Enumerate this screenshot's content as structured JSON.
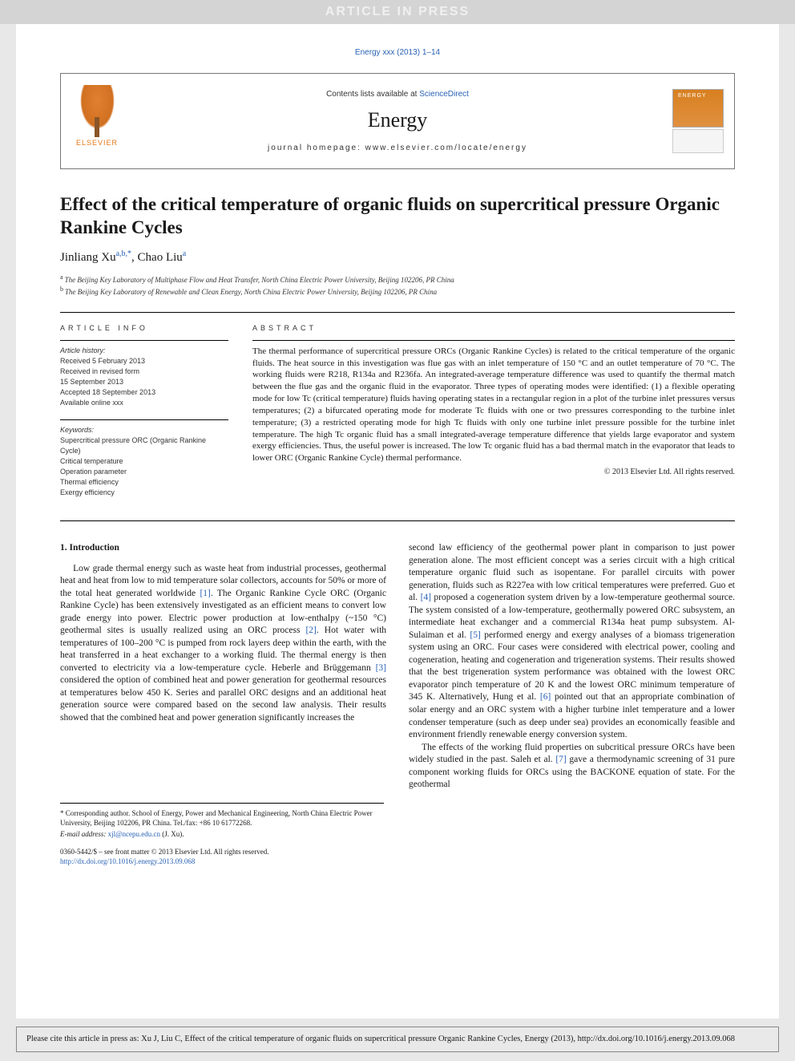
{
  "banner": "ARTICLE IN PRESS",
  "citation_top": "Energy xxx (2013) 1–14",
  "header": {
    "contents_prefix": "Contents lists available at ",
    "contents_link": "ScienceDirect",
    "journal": "Energy",
    "homepage_prefix": "journal homepage: ",
    "homepage": "www.elsevier.com/locate/energy",
    "publisher_logo_label": "ELSEVIER",
    "cover_label": "ENERGY"
  },
  "title": "Effect of the critical temperature of organic fluids on supercritical pressure Organic Rankine Cycles",
  "authors": {
    "a1_name": "Jinliang Xu",
    "a1_aff": "a,b,",
    "a1_corr": "*",
    "a2_name": "Chao Liu",
    "a2_aff": "a"
  },
  "affiliations": {
    "a": "The Beijing Key Laboratory of Multiphase Flow and Heat Transfer, North China Electric Power University, Beijing 102206, PR China",
    "b": "The Beijing Key Laboratory of Renewable and Clean Energy, North China Electric Power University, Beijing 102206, PR China"
  },
  "article_info": {
    "head": "ARTICLE INFO",
    "history_label": "Article history:",
    "received": "Received 5 February 2013",
    "revised": "Received in revised form\n15 September 2013",
    "accepted": "Accepted 18 September 2013",
    "online": "Available online xxx",
    "keywords_label": "Keywords:",
    "k1": "Supercritical pressure ORC (Organic Rankine Cycle)",
    "k2": "Critical temperature",
    "k3": "Operation parameter",
    "k4": "Thermal efficiency",
    "k5": "Exergy efficiency"
  },
  "abstract": {
    "head": "ABSTRACT",
    "body": "The thermal performance of supercritical pressure ORCs (Organic Rankine Cycles) is related to the critical temperature of the organic fluids. The heat source in this investigation was flue gas with an inlet temperature of 150 °C and an outlet temperature of 70 °C. The working fluids were R218, R134a and R236fa. An integrated-average temperature difference was used to quantify the thermal match between the flue gas and the organic fluid in the evaporator. Three types of operating modes were identified: (1) a flexible operating mode for low Tc (critical temperature) fluids having operating states in a rectangular region in a plot of the turbine inlet pressures versus temperatures; (2) a bifurcated operating mode for moderate Tc fluids with one or two pressures corresponding to the turbine inlet temperature; (3) a restricted operating mode for high Tc fluids with only one turbine inlet pressure possible for the turbine inlet temperature. The high Tc organic fluid has a small integrated-average temperature difference that yields large evaporator and system exergy efficiencies. Thus, the useful power is increased. The low Tc organic fluid has a bad thermal match in the evaporator that leads to lower ORC (Organic Rankine Cycle) thermal performance.",
    "copyright": "© 2013 Elsevier Ltd. All rights reserved."
  },
  "intro": {
    "head": "1. Introduction",
    "left": "Low grade thermal energy such as waste heat from industrial processes, geothermal heat and heat from low to mid temperature solar collectors, accounts for 50% or more of the total heat generated worldwide [1]. The Organic Rankine Cycle ORC (Organic Rankine Cycle) has been extensively investigated as an efficient means to convert low grade energy into power. Electric power production at low-enthalpy (~150 °C) geothermal sites is usually realized using an ORC process [2]. Hot water with temperatures of 100–200 °C is pumped from rock layers deep within the earth, with the heat transferred in a heat exchanger to a working fluid. The thermal energy is then converted to electricity via a low-temperature cycle. Heberle and Brüggemann [3] considered the option of combined heat and power generation for geothermal resources at temperatures below 450 K. Series and parallel ORC designs and an additional heat generation source were compared based on the second law analysis. Their results showed that the combined heat and power generation significantly increases the",
    "right1": "second law efficiency of the geothermal power plant in comparison to just power generation alone. The most efficient concept was a series circuit with a high critical temperature organic fluid such as isopentane. For parallel circuits with power generation, fluids such as R227ea with low critical temperatures were preferred. Guo et al. [4] proposed a cogeneration system driven by a low-temperature geothermal source. The system consisted of a low-temperature, geothermally powered ORC subsystem, an intermediate heat exchanger and a commercial R134a heat pump subsystem. Al-Sulaiman et al. [5] performed energy and exergy analyses of a biomass trigeneration system using an ORC. Four cases were considered with electrical power, cooling and cogeneration, heating and cogeneration and trigeneration systems. Their results showed that the best trigeneration system performance was obtained with the lowest ORC evaporator pinch temperature of 20 K and the lowest ORC minimum temperature of 345 K. Alternatively, Hung et al. [6] pointed out that an appropriate combination of solar energy and an ORC system with a higher turbine inlet temperature and a lower condenser temperature (such as deep under sea) provides an economically feasible and environment friendly renewable energy conversion system.",
    "right2": "The effects of the working fluid properties on subcritical pressure ORCs have been widely studied in the past. Saleh et al. [7] gave a thermodynamic screening of 31 pure component working fluids for ORCs using the BACKONE equation of state. For the geothermal"
  },
  "footnotes": {
    "corr": "* Corresponding author. School of Energy, Power and Mechanical Engineering, North China Electric Power University, Beijing 102206, PR China. Tel./fax: +86 10 61772268.",
    "email_label": "E-mail address: ",
    "email": "xjl@ncepu.edu.cn",
    "email_after": " (J. Xu)."
  },
  "front_matter": {
    "issn": "0360-5442/$ – see front matter © 2013 Elsevier Ltd. All rights reserved.",
    "doi": "http://dx.doi.org/10.1016/j.energy.2013.09.068"
  },
  "citation_box": "Please cite this article in press as: Xu J, Liu C, Effect of the critical temperature of organic fluids on supercritical pressure Organic Rankine Cycles, Energy (2013), http://dx.doi.org/10.1016/j.energy.2013.09.068",
  "colors": {
    "link": "#2962b5",
    "banner_bg": "#d4d4d4",
    "page_bg": "#ffffff",
    "body_bg": "#e8e8e8",
    "elsevier_orange": "#e67817"
  },
  "typography": {
    "title_fontsize": 23,
    "journal_fontsize": 26,
    "body_fontsize": 11.5,
    "abstract_fontsize": 11,
    "info_fontsize": 9,
    "font_family_body": "Times New Roman",
    "font_family_ui": "Arial"
  }
}
